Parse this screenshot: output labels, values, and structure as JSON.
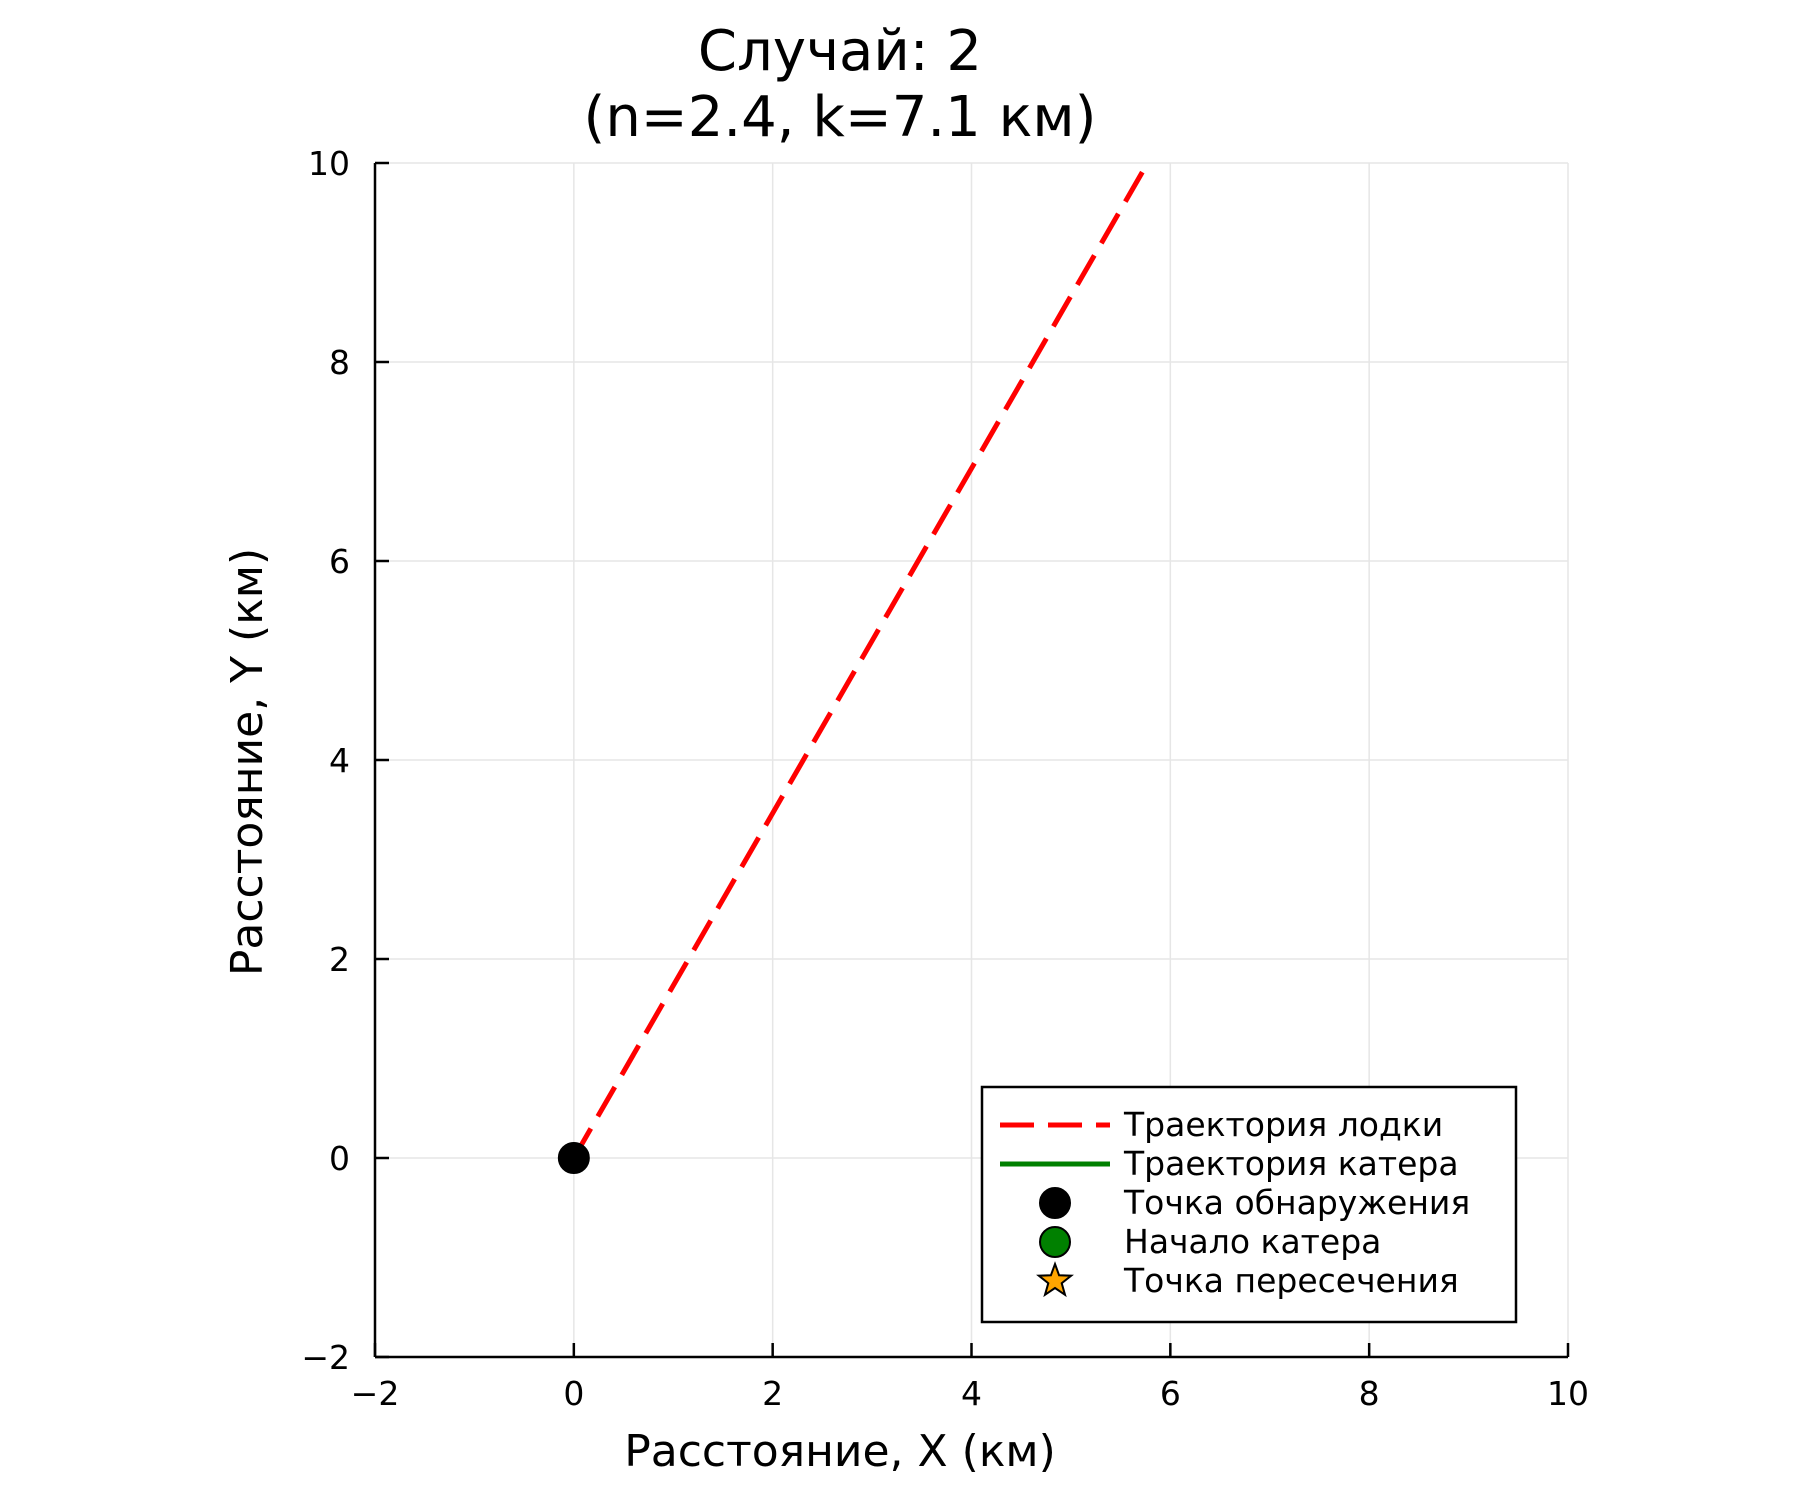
{
  "chart_data": {
    "type": "line",
    "title": "Случай: 2",
    "subtitle": "(n=2.4, k=7.1 км)",
    "xlabel": "Расстояние, X (км)",
    "ylabel": "Расстояние, Y (км)",
    "xlim": [
      -2,
      10
    ],
    "ylim": [
      -2,
      10
    ],
    "xticks": [
      -2,
      0,
      2,
      4,
      6,
      8,
      10
    ],
    "yticks": [
      -2,
      0,
      2,
      4,
      6,
      8,
      10
    ],
    "xtick_labels": [
      "−2",
      "0",
      "2",
      "4",
      "6",
      "8",
      "10"
    ],
    "ytick_labels": [
      "−2",
      "0",
      "2",
      "4",
      "6",
      "8",
      "10"
    ],
    "grid": true,
    "legend_position": "bottom-right",
    "series": [
      {
        "name": "Траектория лодки",
        "kind": "line",
        "style": "dashed",
        "color": "#ff0000",
        "x": [
          0,
          5.8
        ],
        "y": [
          0,
          10.05
        ]
      },
      {
        "name": "Траектория катера",
        "kind": "line",
        "style": "solid",
        "color": "#008000",
        "x": [],
        "y": []
      },
      {
        "name": "Точка обнаружения",
        "kind": "marker",
        "marker": "circle",
        "color": "#000000",
        "x": [
          0
        ],
        "y": [
          0
        ]
      },
      {
        "name": "Начало катера",
        "kind": "marker",
        "marker": "circle",
        "color": "#008000",
        "x": [],
        "y": []
      },
      {
        "name": "Точка пересечения",
        "kind": "marker",
        "marker": "star",
        "color": "#ffa500",
        "x": [],
        "y": []
      }
    ]
  }
}
